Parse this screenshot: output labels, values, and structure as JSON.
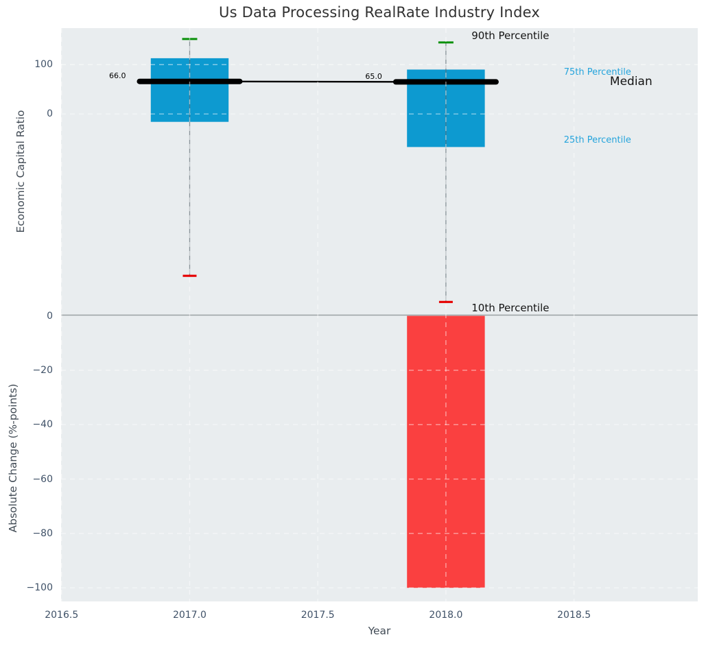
{
  "title": "Us Data Processing RealRate Industry Index",
  "chart_data": {
    "type": "box",
    "title": "Us Data Processing RealRate Industry Index",
    "xlabel": "Year",
    "grid": true,
    "xlim": [
      2016.498,
      2018.983
    ],
    "x_ticks": [
      {
        "value": 2016.5,
        "label": "2016.5"
      },
      {
        "value": 2017.0,
        "label": "2017.0"
      },
      {
        "value": 2017.5,
        "label": "2017.5"
      },
      {
        "value": 2018.0,
        "label": "2018.0"
      },
      {
        "value": 2018.5,
        "label": "2018.5"
      }
    ],
    "panels": [
      {
        "ylabel": "Economic Capital Ratio",
        "ylim": [
          -407,
          174
        ],
        "y_ticks": [
          {
            "value": 100,
            "label": "100"
          },
          {
            "value": 0,
            "label": "0"
          }
        ],
        "boxes": [
          {
            "year": 2017,
            "p10": -328,
            "p25": -16,
            "median": 66,
            "p75": 113,
            "p90": 152,
            "median_label": "66.0"
          },
          {
            "year": 2018,
            "p10": -381,
            "p25": -67,
            "median": 65,
            "p75": 90,
            "p90": 145,
            "median_label": "65.0"
          }
        ],
        "median_trend": [
          {
            "x": 2017,
            "y": 66
          },
          {
            "x": 2018,
            "y": 65
          }
        ],
        "annotations": [
          {
            "text": "90th Percentile",
            "x": 2018.1,
            "y": 159,
            "color": "black",
            "size": "lg",
            "name": "annotation-90th-percentile"
          },
          {
            "text": "10th Percentile",
            "x": 2018.1,
            "y": -393,
            "color": "black",
            "size": "lg",
            "name": "annotation-10th-percentile"
          },
          {
            "text": "75th Percentile",
            "x": 2018.46,
            "y": 84,
            "color": "blue",
            "size": "sm",
            "name": "annotation-75th-percentile"
          },
          {
            "text": "Median",
            "x": 2018.64,
            "y": 66,
            "color": "black",
            "size": "xl",
            "name": "annotation-median"
          },
          {
            "text": "25th Percentile",
            "x": 2018.46,
            "y": -53,
            "color": "blue",
            "size": "sm",
            "name": "annotation-25th-percentile"
          }
        ]
      },
      {
        "ylabel": "Absolute Change (%-points)",
        "ylim": [
          -105,
          0.4
        ],
        "y_ticks": [
          {
            "value": 0,
            "label": "0"
          },
          {
            "value": -20,
            "label": "−20"
          },
          {
            "value": -40,
            "label": "−40"
          },
          {
            "value": -60,
            "label": "−60"
          },
          {
            "value": -80,
            "label": "−80"
          },
          {
            "value": -100,
            "label": "−100"
          }
        ],
        "bars": [
          {
            "year": 2018,
            "value": -100
          }
        ]
      }
    ],
    "colors": {
      "box_fill": "#0d9ad0",
      "bar_fill": "#fa4040",
      "cap_high": "#0a910a",
      "cap_low": "#e60000",
      "median_line": "#000000",
      "whisker": "#5f6b72",
      "plot_bg": "#e9edef",
      "grid": "#ffffff",
      "separator": "#9aa0a3",
      "tick_text": "#3f5167",
      "annotation_blue": "#25a4dc",
      "annotation_black": "#141414"
    }
  }
}
